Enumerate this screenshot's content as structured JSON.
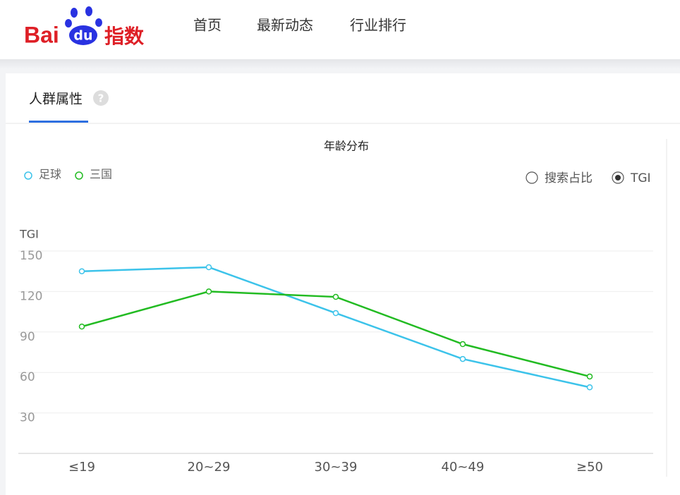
{
  "header": {
    "logo": {
      "brand": "Bai",
      "paw": "du",
      "product": "指数"
    },
    "nav": [
      "首页",
      "最新动态",
      "行业排行"
    ]
  },
  "tab": {
    "title": "人群属性",
    "help": "?"
  },
  "toggle": {
    "options": [
      "搜索占比",
      "TGI"
    ],
    "selected": 1
  },
  "chart_data": {
    "type": "line",
    "title": "年龄分布",
    "ylabel": "TGI",
    "categories": [
      "≤19",
      "20~29",
      "30~39",
      "40~49",
      "≥50"
    ],
    "series": [
      {
        "name": "足球",
        "color": "#3cc3ea",
        "values": [
          135,
          138,
          104,
          70,
          49
        ]
      },
      {
        "name": "三国",
        "color": "#22bb22",
        "values": [
          94,
          120,
          116,
          81,
          57
        ]
      }
    ],
    "ylim": [
      0,
      150
    ],
    "yticks": [
      30,
      60,
      90,
      120,
      150
    ],
    "grid": true,
    "legend": "top-left"
  }
}
